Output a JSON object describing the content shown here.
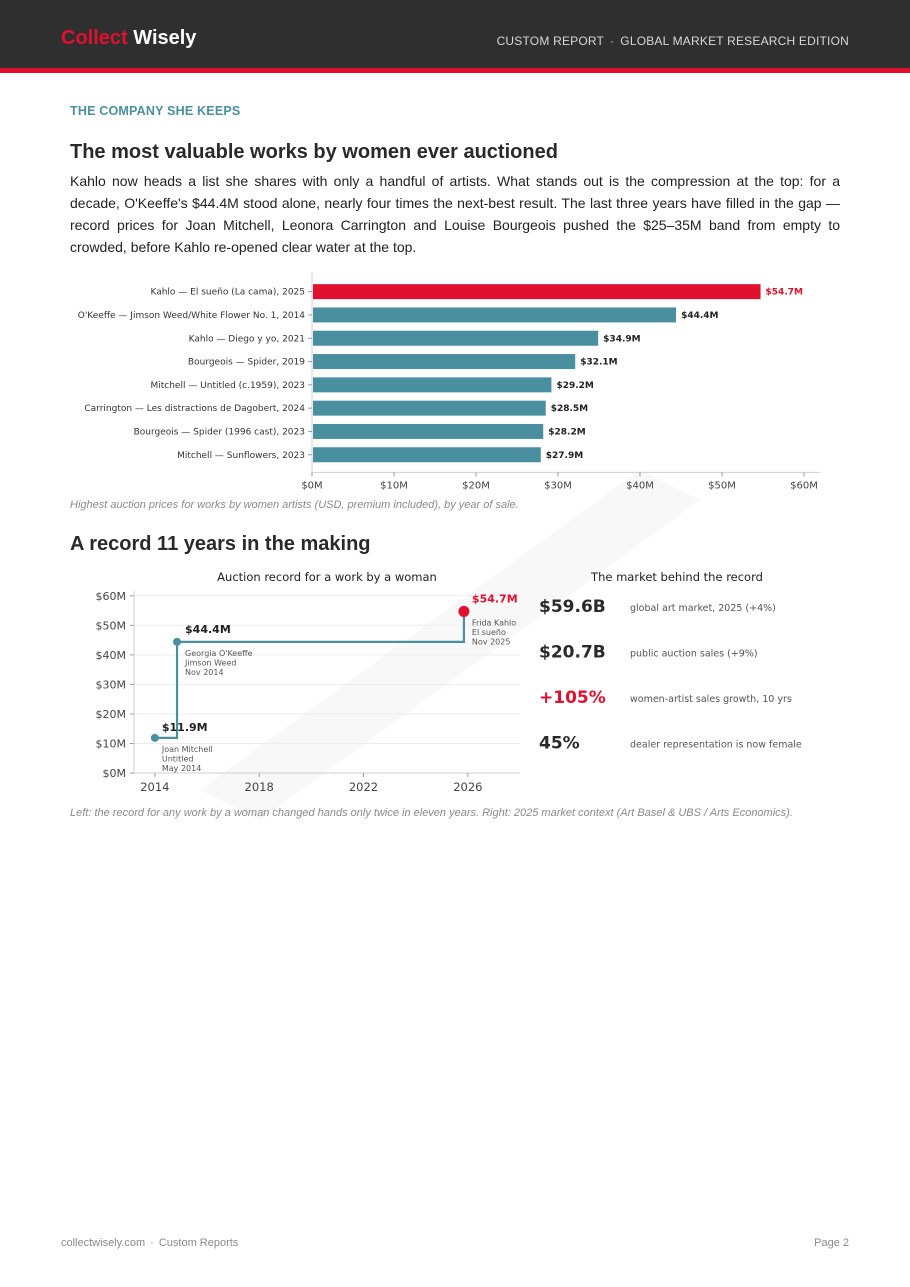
{
  "header": {
    "brand_part1": "Collect",
    "brand_part2": "Wisely",
    "report_type": "CUSTOM REPORT",
    "separator": "·",
    "edition": "GLOBAL MARKET RESEARCH EDITION"
  },
  "section": {
    "kicker": "THE COMPANY SHE KEEPS",
    "title": "The most valuable works by women ever auctioned",
    "paragraph": "Kahlo now heads a list she shares with only a handful of artists. What stands out is the compression at the top: for a decade, O'Keeffe's $44.4M stood alone, nearly four times the next-best result. The last three years have filled in the gap — record prices for Joan Mitchell, Leonora Carrington and Louise Bourgeois pushed the $25–35M band from empty to crowded, before Kahlo re-opened clear water at the top.",
    "caption1": "Highest auction prices for works by women artists (USD, premium included), by year of sale.",
    "title2": "A record 11 years in the making",
    "caption2": "Left: the record for any work by a woman changed hands only twice in eleven years. Right: 2025 market context (Art Basel & UBS / Arts Economics)."
  },
  "colors": {
    "accent": "#e0102f",
    "teal": "#4a8fa0",
    "header_bg": "#2f2f2f"
  },
  "chart_data": [
    {
      "type": "bar",
      "orientation": "horizontal",
      "categories": [
        "Kahlo — El sueño (La cama), 2025",
        "O'Keeffe — Jimson Weed/White Flower No. 1, 2014",
        "Kahlo — Diego y yo, 2021",
        "Bourgeois — Spider, 2019",
        "Mitchell — Untitled (c.1959), 2023",
        "Carrington — Les distractions de Dagobert, 2024",
        "Bourgeois — Spider (1996 cast), 2023",
        "Mitchell — Sunflowers, 2023"
      ],
      "values": [
        54.7,
        44.4,
        34.9,
        32.1,
        29.2,
        28.5,
        28.2,
        27.9
      ],
      "value_labels": [
        "$54.7M",
        "$44.4M",
        "$34.9M",
        "$32.1M",
        "$29.2M",
        "$28.5M",
        "$28.2M",
        "$27.9M"
      ],
      "highlight_index": 0,
      "xlim": [
        0,
        60
      ],
      "xticks": [
        0,
        10,
        20,
        30,
        40,
        50,
        60
      ],
      "xtick_labels": [
        "$0M",
        "$10M",
        "$20M",
        "$30M",
        "$40M",
        "$50M",
        "$60M"
      ],
      "grid": false
    },
    {
      "type": "line",
      "step": true,
      "title": "Auction record for a work by a woman",
      "x": [
        2014.0,
        2014.85,
        2025.85
      ],
      "y": [
        11.9,
        44.4,
        54.7
      ],
      "point_labels": [
        "$11.9M",
        "$44.4M",
        "$54.7M"
      ],
      "annotations": [
        [
          "Joan Mitchell",
          "Untitled",
          "May 2014"
        ],
        [
          "Georgia O'Keeffe",
          "Jimson Weed",
          "Nov 2014"
        ],
        [
          "Frida Kahlo",
          "El sueño",
          "Nov 2025"
        ]
      ],
      "xlim": [
        2013.2,
        2028
      ],
      "ylim": [
        0,
        65
      ],
      "xticks": [
        2014,
        2018,
        2022,
        2026
      ],
      "xtick_labels": [
        "2014",
        "2018",
        "2022",
        "2026"
      ],
      "yticks": [
        0,
        10,
        20,
        30,
        40,
        50,
        60
      ],
      "ytick_labels": [
        "$0M",
        "$10M",
        "$20M",
        "$30M",
        "$40M",
        "$50M",
        "$60M"
      ],
      "grid": true
    },
    {
      "type": "table",
      "title": "The market behind the record",
      "rows": [
        {
          "value": "$59.6B",
          "label": "global art market, 2025 (+4%)",
          "highlight": false
        },
        {
          "value": "$20.7B",
          "label": "public auction sales (+9%)",
          "highlight": false
        },
        {
          "value": "+105%",
          "label": "women-artist sales growth, 10 yrs",
          "highlight": true
        },
        {
          "value": "45%",
          "label": "dealer representation is now female",
          "highlight": false
        }
      ]
    }
  ],
  "footer": {
    "site": "collectwisely.com",
    "separator": "·",
    "section": "Custom Reports",
    "page": "Page 2"
  }
}
